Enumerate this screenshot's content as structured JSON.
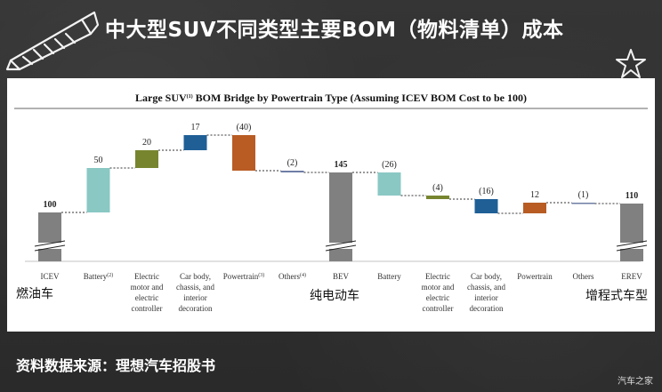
{
  "page": {
    "title": "中大型SUV不同类型主要BOM（物料清单）成本",
    "source": "资料数据来源：理想汽车招股书",
    "watermark": "汽车之家"
  },
  "labels": {
    "icev_cn": "燃油车",
    "bev_cn": "纯电动车",
    "erev_cn": "增程式车型"
  },
  "chart_data": {
    "type": "waterfall",
    "title": "Large SUV",
    "title_sup": "(1)",
    "title_rest": " BOM Bridge by Powertrain Type (Assuming ICEV BOM Cost to be 100)",
    "ylim": [
      0,
      165
    ],
    "steps": [
      {
        "label": "ICEV",
        "sup": "",
        "kind": "total",
        "value": 100,
        "value_label": "100",
        "color": "#808080"
      },
      {
        "label": "Battery",
        "sup": "(2)",
        "kind": "delta",
        "value": 50,
        "value_label": "50",
        "color": "#8ac8c4"
      },
      {
        "label": "Electric motor and electric controller",
        "sup": "",
        "kind": "delta",
        "value": 20,
        "value_label": "20",
        "color": "#77852f"
      },
      {
        "label": "Car body, chassis, and interior decoration",
        "sup": "",
        "kind": "delta",
        "value": 17,
        "value_label": "17",
        "color": "#1f5f96"
      },
      {
        "label": "Powertrain",
        "sup": "(3)",
        "kind": "delta",
        "value": -40,
        "value_label": "(40)",
        "color": "#b85c24"
      },
      {
        "label": "Others",
        "sup": "(4)",
        "kind": "delta",
        "value": -2,
        "value_label": "(2)",
        "color": "#6f7ea6"
      },
      {
        "label": "BEV",
        "sup": "",
        "kind": "total",
        "value": 145,
        "value_label": "145",
        "color": "#808080"
      },
      {
        "label": "Battery",
        "sup": "",
        "kind": "delta",
        "value": -26,
        "value_label": "(26)",
        "color": "#8ac8c4"
      },
      {
        "label": "Electric motor and electric controller",
        "sup": "",
        "kind": "delta",
        "value": -4,
        "value_label": "(4)",
        "color": "#77852f"
      },
      {
        "label": "Car body, chassis, and interior decoration",
        "sup": "",
        "kind": "delta",
        "value": -16,
        "value_label": "(16)",
        "color": "#1f5f96"
      },
      {
        "label": "Powertrain",
        "sup": "",
        "kind": "delta",
        "value": 12,
        "value_label": "12",
        "color": "#b85c24"
      },
      {
        "label": "Others",
        "sup": "",
        "kind": "delta",
        "value": -1,
        "value_label": "(1)",
        "color": "#6f7ea6"
      },
      {
        "label": "EREV",
        "sup": "",
        "kind": "total",
        "value": 110,
        "value_label": "110",
        "color": "#808080"
      }
    ],
    "x_tick_lines": [
      [
        "ICEV"
      ],
      [
        "Battery"
      ],
      [
        "Electric",
        "motor and",
        "electric",
        "controller"
      ],
      [
        "Car body,",
        "chassis, and",
        "interior",
        "decoration"
      ],
      [
        "Powertrain"
      ],
      [
        "Others"
      ],
      [
        "BEV"
      ],
      [
        "Battery"
      ],
      [
        "Electric",
        "motor and",
        "electric",
        "controller"
      ],
      [
        "Car body,",
        "chassis, and",
        "interior",
        "decoration"
      ],
      [
        "Powertrain"
      ],
      [
        "Others"
      ],
      [
        "EREV"
      ]
    ],
    "connectors": "dotted",
    "axis_break_on_totals": true
  },
  "icons": {
    "pencil": "pencil-icon",
    "star": "star-icon"
  }
}
